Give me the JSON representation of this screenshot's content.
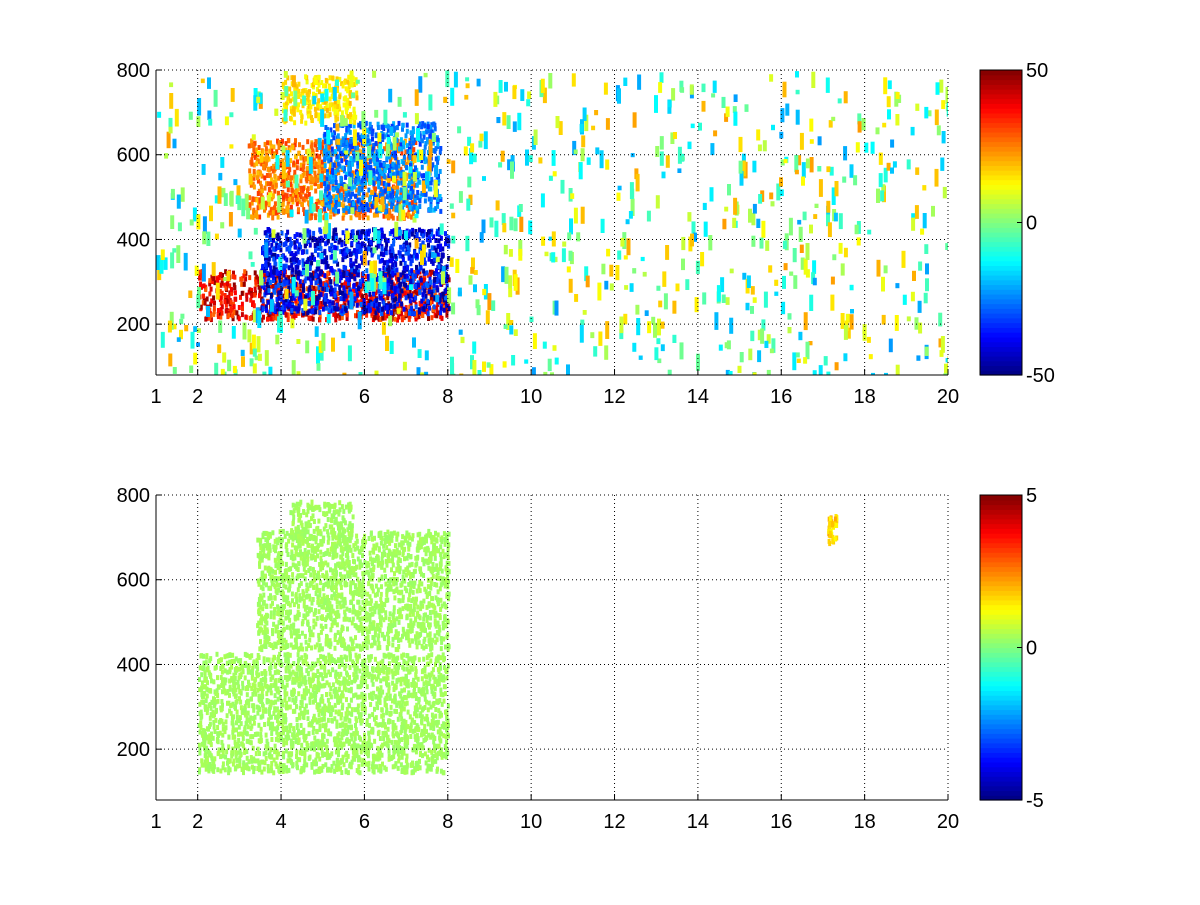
{
  "chart_data": [
    {
      "type": "heatmap",
      "title": "",
      "xlabel": "",
      "ylabel": "",
      "xlim": [
        1,
        20
      ],
      "ylim": [
        80,
        800
      ],
      "x_ticks": [
        "1",
        "2",
        "4",
        "6",
        "8",
        "10",
        "12",
        "14",
        "16",
        "18",
        "20"
      ],
      "y_ticks": [
        "200",
        "400",
        "600",
        "800"
      ],
      "grid": true,
      "colormap": "jet",
      "colorbar": {
        "min": -50,
        "max": 50,
        "ticks": [
          "-50",
          "0",
          "50"
        ]
      },
      "features": [
        {
          "label": "lower band (positive)",
          "x": [
            2.0,
            8.0
          ],
          "y": [
            215,
            330
          ],
          "value": 45
        },
        {
          "label": "lower band (negative)",
          "x": [
            3.5,
            8.0
          ],
          "y": [
            230,
            430
          ],
          "value": -45
        },
        {
          "label": "middle band (positive)",
          "x": [
            3.2,
            7.2
          ],
          "y": [
            455,
            640
          ],
          "value": 30
        },
        {
          "label": "middle band (negative)",
          "x": [
            5.0,
            7.8
          ],
          "y": [
            470,
            680
          ],
          "value": -30
        },
        {
          "label": "upper band (positive)",
          "x": [
            4.0,
            5.8
          ],
          "y": [
            680,
            790
          ],
          "value": 18
        },
        {
          "label": "scattered noise",
          "x": [
            1.0,
            20.0
          ],
          "y": [
            80,
            800
          ],
          "value": 0
        }
      ]
    },
    {
      "type": "heatmap",
      "title": "",
      "xlabel": "",
      "ylabel": "",
      "xlim": [
        1,
        20
      ],
      "ylim": [
        80,
        800
      ],
      "x_ticks": [
        "1",
        "2",
        "4",
        "6",
        "8",
        "10",
        "12",
        "14",
        "16",
        "18",
        "20"
      ],
      "y_ticks": [
        "200",
        "400",
        "600",
        "800"
      ],
      "grid": true,
      "colormap": "jet",
      "colorbar": {
        "min": -5,
        "max": 5,
        "ticks": [
          "-5",
          "0",
          "5"
        ]
      },
      "features": [
        {
          "label": "lower region",
          "x": [
            2.0,
            8.0
          ],
          "y": [
            150,
            430
          ],
          "value": 0.4
        },
        {
          "label": "middle band",
          "x": [
            3.4,
            8.0
          ],
          "y": [
            440,
            720
          ],
          "value": 0.4
        },
        {
          "label": "upper band",
          "x": [
            4.2,
            5.7
          ],
          "y": [
            700,
            790
          ],
          "value": 0.4
        },
        {
          "label": "isolated points near x=17.2",
          "x": [
            17.1,
            17.3
          ],
          "y": [
            690,
            760
          ],
          "value": 2
        }
      ]
    }
  ]
}
